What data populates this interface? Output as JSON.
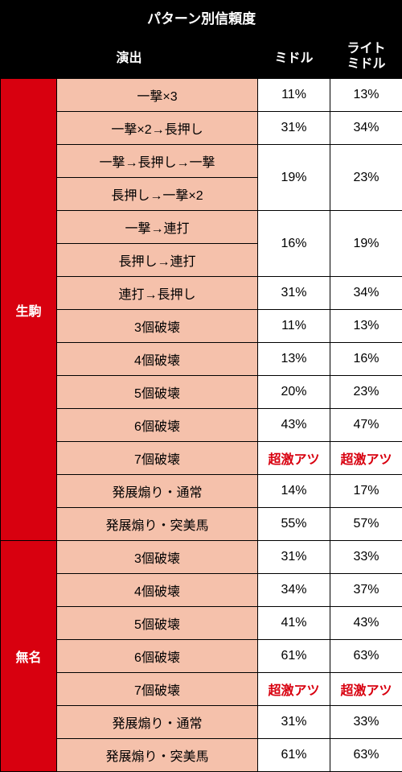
{
  "title": "パターン別信頼度",
  "headers": {
    "pattern": "演出",
    "col1": "ミドル",
    "col2_line1": "ライト",
    "col2_line2": "ミドル"
  },
  "colors": {
    "header_bg": "#000000",
    "header_fg": "#ffffff",
    "category_bg": "#d8000f",
    "category_fg": "#ffffff",
    "pattern_bg": "#f5c1ab",
    "value_bg": "#ffffff",
    "value_red": "#d8000f",
    "border": "#000000"
  },
  "categories": [
    {
      "name": "生駒",
      "rows": [
        {
          "pattern": "一撃×3",
          "v1": "11%",
          "v2": "13%"
        },
        {
          "pattern": "一撃×2→長押し",
          "v1": "31%",
          "v2": "34%"
        },
        {
          "pattern": "一撃→長押し→一撃",
          "v1": "19%",
          "v2": "23%",
          "merge_down_values": true
        },
        {
          "pattern": "長押し→一撃×2"
        },
        {
          "pattern": "一撃→連打",
          "v1": "16%",
          "v2": "19%",
          "merge_down_values": true
        },
        {
          "pattern": "長押し→連打"
        },
        {
          "pattern": "連打→長押し",
          "v1": "31%",
          "v2": "34%"
        },
        {
          "pattern": "3個破壊",
          "v1": "11%",
          "v2": "13%"
        },
        {
          "pattern": "4個破壊",
          "v1": "13%",
          "v2": "16%"
        },
        {
          "pattern": "5個破壊",
          "v1": "20%",
          "v2": "23%"
        },
        {
          "pattern": "6個破壊",
          "v1": "43%",
          "v2": "47%"
        },
        {
          "pattern": "7個破壊",
          "v1": "超激アツ",
          "v2": "超激アツ",
          "red": true
        },
        {
          "pattern": "発展煽り・通常",
          "v1": "14%",
          "v2": "17%"
        },
        {
          "pattern": "発展煽り・突美馬",
          "v1": "55%",
          "v2": "57%"
        }
      ]
    },
    {
      "name": "無名",
      "rows": [
        {
          "pattern": "3個破壊",
          "v1": "31%",
          "v2": "33%"
        },
        {
          "pattern": "4個破壊",
          "v1": "34%",
          "v2": "37%"
        },
        {
          "pattern": "5個破壊",
          "v1": "41%",
          "v2": "43%"
        },
        {
          "pattern": "6個破壊",
          "v1": "61%",
          "v2": "63%"
        },
        {
          "pattern": "7個破壊",
          "v1": "超激アツ",
          "v2": "超激アツ",
          "red": true
        },
        {
          "pattern": "発展煽り・通常",
          "v1": "31%",
          "v2": "33%"
        },
        {
          "pattern": "発展煽り・突美馬",
          "v1": "61%",
          "v2": "63%"
        }
      ]
    }
  ]
}
